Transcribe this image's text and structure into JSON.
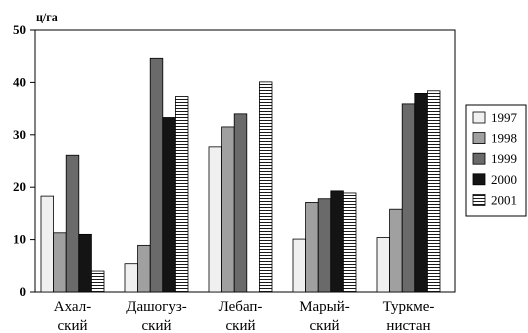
{
  "chart_data": {
    "type": "bar",
    "unit_label": "ц/га",
    "categories": [
      [
        "Ахал-",
        "ский"
      ],
      [
        "Дашогуз-",
        "ский"
      ],
      [
        "Лебап-",
        "ский"
      ],
      [
        "Марый-",
        "ский"
      ],
      [
        "Туркме-",
        "нистан"
      ]
    ],
    "series": [
      {
        "name": "1997",
        "color": "#f0f0f0",
        "pattern": "solid",
        "values": [
          18.3,
          5.4,
          27.7,
          10.1,
          10.4
        ]
      },
      {
        "name": "1998",
        "color": "#a0a0a0",
        "pattern": "solid",
        "values": [
          11.3,
          8.9,
          31.5,
          17.1,
          15.8
        ]
      },
      {
        "name": "1999",
        "color": "#6a6a6a",
        "pattern": "solid",
        "values": [
          26.1,
          44.6,
          34.0,
          17.8,
          35.9
        ]
      },
      {
        "name": "2000",
        "color": "#141414",
        "pattern": "solid",
        "values": [
          11.0,
          33.3,
          0,
          19.3,
          37.9
        ]
      },
      {
        "name": "2001",
        "color": "#ffffff",
        "pattern": "hlines",
        "values": [
          4.0,
          37.3,
          40.1,
          18.9,
          38.4
        ]
      }
    ],
    "y_ticks": [
      0,
      10,
      20,
      30,
      40,
      50
    ],
    "ylim": [
      0,
      50
    ],
    "grid": false,
    "legend_position": "right"
  }
}
